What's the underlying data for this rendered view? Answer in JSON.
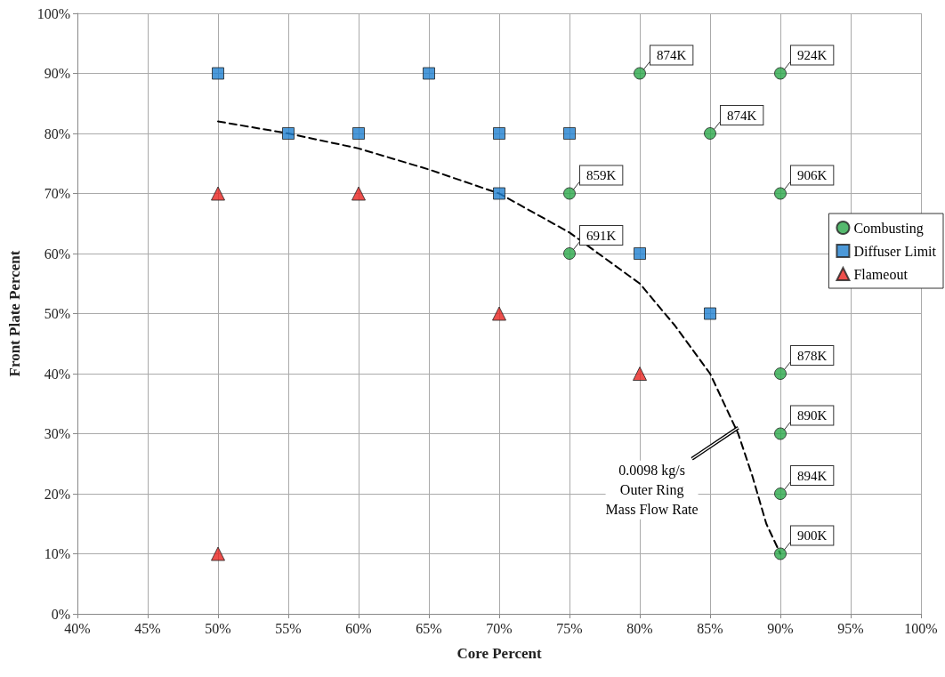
{
  "chart_data": {
    "type": "scatter",
    "xlabel": "Core Percent",
    "ylabel": "Front Plate Percent",
    "xlim": [
      40,
      100
    ],
    "ylim": [
      0,
      100
    ],
    "xticks": [
      {
        "value": 40,
        "label": "40%"
      },
      {
        "value": 45,
        "label": "45%"
      },
      {
        "value": 50,
        "label": "50%"
      },
      {
        "value": 55,
        "label": "55%"
      },
      {
        "value": 60,
        "label": "60%"
      },
      {
        "value": 65,
        "label": "65%"
      },
      {
        "value": 70,
        "label": "70%"
      },
      {
        "value": 75,
        "label": "75%"
      },
      {
        "value": 80,
        "label": "80%"
      },
      {
        "value": 85,
        "label": "85%"
      },
      {
        "value": 90,
        "label": "90%"
      },
      {
        "value": 95,
        "label": "95%"
      },
      {
        "value": 100,
        "label": "100%"
      }
    ],
    "yticks": [
      {
        "value": 0,
        "label": "0%"
      },
      {
        "value": 10,
        "label": "10%"
      },
      {
        "value": 20,
        "label": "20%"
      },
      {
        "value": 30,
        "label": "30%"
      },
      {
        "value": 40,
        "label": "40%"
      },
      {
        "value": 50,
        "label": "50%"
      },
      {
        "value": 60,
        "label": "60%"
      },
      {
        "value": 70,
        "label": "70%"
      },
      {
        "value": 80,
        "label": "80%"
      },
      {
        "value": 90,
        "label": "90%"
      },
      {
        "value": 100,
        "label": "100%"
      }
    ],
    "grid": true,
    "legend": "right",
    "series": [
      {
        "name": "Combusting",
        "color": "#2aa84a",
        "marker": "circle",
        "x": [
          80,
          90,
          85,
          75,
          90,
          75,
          90,
          90,
          90,
          90
        ],
        "values": [
          90,
          90,
          80,
          70,
          70,
          60,
          40,
          30,
          20,
          10
        ]
      },
      {
        "name": "Diffuser Limit",
        "color": "#1f7fcf",
        "marker": "square",
        "x": [
          50,
          55,
          60,
          65,
          70,
          75,
          70,
          80,
          85
        ],
        "values": [
          90,
          80,
          80,
          90,
          80,
          80,
          70,
          60,
          50
        ]
      },
      {
        "name": "Flameout",
        "color": "#e8231f",
        "marker": "triangle",
        "x": [
          50,
          60,
          70,
          80,
          50
        ],
        "values": [
          70,
          70,
          50,
          40,
          10
        ]
      },
      {
        "type": "line",
        "color": "#000000",
        "marker": "none",
        "line_style": "dashed",
        "x": [
          50,
          55,
          60,
          65,
          70,
          75,
          80,
          82.5,
          85,
          87,
          88,
          89,
          90
        ],
        "values": [
          82,
          80,
          77.5,
          74,
          70,
          63.5,
          55,
          48,
          40,
          30,
          23,
          15,
          10
        ]
      }
    ],
    "annotations": [
      {
        "text": "874K",
        "x": 80,
        "y": 90
      },
      {
        "text": "924K",
        "x": 90,
        "y": 90
      },
      {
        "text": "874K",
        "x": 85,
        "y": 80
      },
      {
        "text": "859K",
        "x": 75,
        "y": 70
      },
      {
        "text": "906K",
        "x": 90,
        "y": 70
      },
      {
        "text": "691K",
        "x": 75,
        "y": 60
      },
      {
        "text": "878K",
        "x": 90,
        "y": 40
      },
      {
        "text": "890K",
        "x": 90,
        "y": 30
      },
      {
        "text": "894K",
        "x": 90,
        "y": 20
      },
      {
        "text": "900K",
        "x": 90,
        "y": 10
      },
      {
        "text": "0.0098 kg/s\nOuter Ring\nMass Flow Rate",
        "x": 87,
        "y": 31
      }
    ]
  }
}
